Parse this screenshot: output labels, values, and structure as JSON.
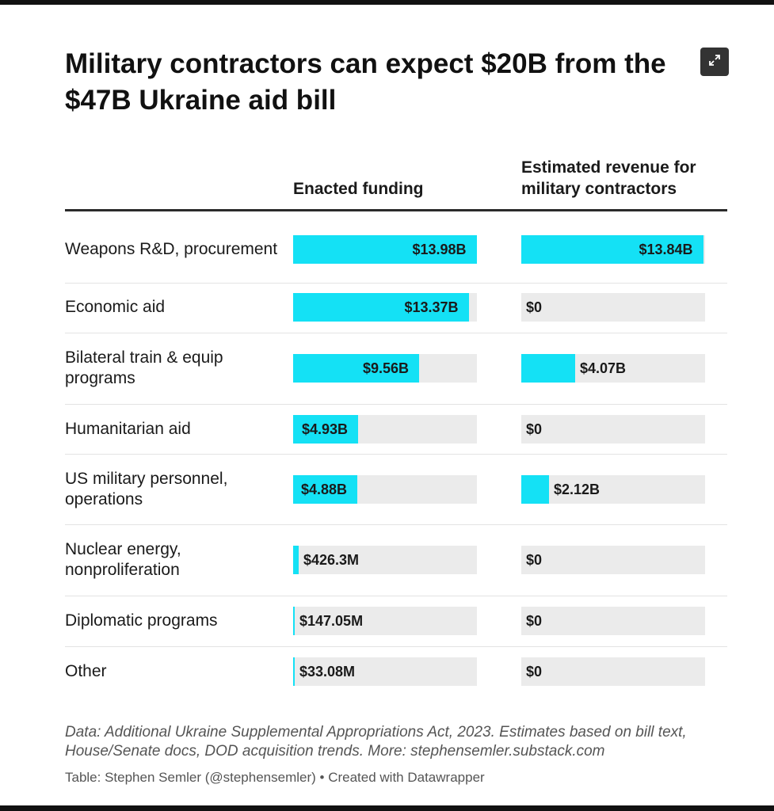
{
  "title": "Military contractors can expect $20B from the $47B Ukraine aid bill",
  "expand_icon": "expand-arrows-icon",
  "chart_data": {
    "type": "table",
    "columns": [
      "Enacted funding",
      "Estimated revenue for military contractors"
    ],
    "rows": [
      {
        "label": "Weapons R&D, procurement",
        "enacted": 13.98,
        "enacted_label": "$13.98B",
        "revenue": 13.84,
        "revenue_label": "$13.84B"
      },
      {
        "label": "Economic aid",
        "enacted": 13.37,
        "enacted_label": "$13.37B",
        "revenue": 0,
        "revenue_label": "$0"
      },
      {
        "label": "Bilateral train & equip programs",
        "enacted": 9.56,
        "enacted_label": "$9.56B",
        "revenue": 4.07,
        "revenue_label": "$4.07B"
      },
      {
        "label": "Humanitarian aid",
        "enacted": 4.93,
        "enacted_label": "$4.93B",
        "revenue": 0,
        "revenue_label": "$0"
      },
      {
        "label": "US military personnel, operations",
        "enacted": 4.88,
        "enacted_label": "$4.88B",
        "revenue": 2.12,
        "revenue_label": "$2.12B"
      },
      {
        "label": "Nuclear energy, nonproliferation",
        "enacted": 0.4263,
        "enacted_label": "$426.3M",
        "revenue": 0,
        "revenue_label": "$0"
      },
      {
        "label": "Diplomatic programs",
        "enacted": 0.14705,
        "enacted_label": "$147.05M",
        "revenue": 0,
        "revenue_label": "$0"
      },
      {
        "label": "Other",
        "enacted": 0.03308,
        "enacted_label": "$33.08M",
        "revenue": 0,
        "revenue_label": "$0"
      }
    ],
    "bar_color": "#14e1f5",
    "track_color": "#ebebeb"
  },
  "footer": {
    "note": "Data: Additional Ukraine Supplemental Appropriations Act, 2023. Estimates based on bill text, House/Senate docs, DOD acquisition trends. More: stephensemler.substack.com",
    "credit": "Table: Stephen Semler (@stephensemler) • Created with Datawrapper"
  }
}
